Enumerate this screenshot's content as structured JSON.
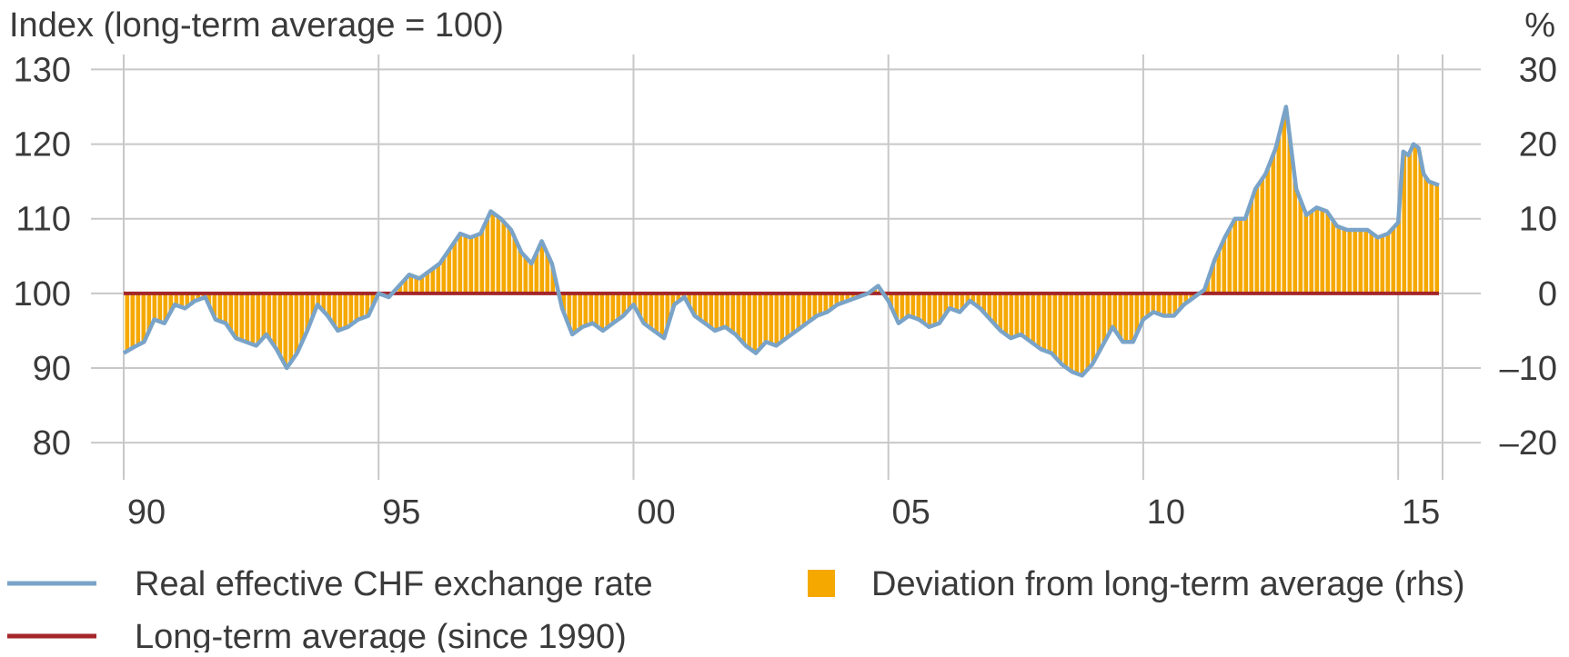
{
  "chart_data": {
    "type": "line",
    "title": "",
    "ylabel_left": "Index (long-term average = 100)",
    "ylabel_right": "%",
    "x_range": [
      1990.0,
      2015.8
    ],
    "ylim_left": [
      76,
      132
    ],
    "ylim_right": [
      -24,
      32
    ],
    "yticks_left": [
      80,
      90,
      100,
      110,
      120,
      130
    ],
    "yticks_right": [
      -20,
      -10,
      0,
      10,
      20,
      30
    ],
    "ytick_labels_right": [
      "–20",
      "–10",
      "0",
      "10",
      "20",
      "30"
    ],
    "xticks": [
      {
        "year": 1990,
        "label": "90"
      },
      {
        "year": 1995,
        "label": "95"
      },
      {
        "year": 2000,
        "label": "00"
      },
      {
        "year": 2005,
        "label": "05"
      },
      {
        "year": 2010,
        "label": "10"
      },
      {
        "year": 2015,
        "label": "15"
      }
    ],
    "grid": true,
    "legend": [
      {
        "name": "Real effective CHF exchange rate",
        "symbol": "line",
        "color": "#7aa3c8"
      },
      {
        "name": "Deviation from long-term average (rhs)",
        "symbol": "square",
        "color": "#f5a800"
      },
      {
        "name": "Long-term average (since 1990)",
        "symbol": "line",
        "color": "#a3262a"
      }
    ],
    "colors": {
      "rate_line": "#7aa3c8",
      "average_line": "#a3262a",
      "deviation_fill": "#f5a800",
      "deviation_stripe": "#ffffff",
      "grid": "#c8c8c8"
    },
    "series": [
      {
        "name": "Real effective CHF exchange rate",
        "points": [
          [
            1990.0,
            92.0
          ],
          [
            1990.2,
            92.8
          ],
          [
            1990.4,
            93.5
          ],
          [
            1990.6,
            96.5
          ],
          [
            1990.8,
            96.0
          ],
          [
            1991.0,
            98.5
          ],
          [
            1991.2,
            98.0
          ],
          [
            1991.4,
            99.0
          ],
          [
            1991.6,
            99.5
          ],
          [
            1991.8,
            96.5
          ],
          [
            1992.0,
            96.0
          ],
          [
            1992.2,
            94.0
          ],
          [
            1992.4,
            93.5
          ],
          [
            1992.6,
            93.0
          ],
          [
            1992.8,
            94.5
          ],
          [
            1993.0,
            92.5
          ],
          [
            1993.2,
            90.0
          ],
          [
            1993.4,
            92.0
          ],
          [
            1993.6,
            95.0
          ],
          [
            1993.8,
            98.5
          ],
          [
            1994.0,
            97.0
          ],
          [
            1994.2,
            95.0
          ],
          [
            1994.4,
            95.5
          ],
          [
            1994.6,
            96.5
          ],
          [
            1994.8,
            97.0
          ],
          [
            1995.0,
            100.0
          ],
          [
            1995.2,
            99.5
          ],
          [
            1995.4,
            101.0
          ],
          [
            1995.6,
            102.5
          ],
          [
            1995.8,
            102.0
          ],
          [
            1996.0,
            103.0
          ],
          [
            1996.2,
            104.0
          ],
          [
            1996.4,
            106.0
          ],
          [
            1996.6,
            108.0
          ],
          [
            1996.8,
            107.5
          ],
          [
            1997.0,
            108.0
          ],
          [
            1997.2,
            111.0
          ],
          [
            1997.4,
            110.0
          ],
          [
            1997.6,
            108.5
          ],
          [
            1997.8,
            105.5
          ],
          [
            1998.0,
            104.0
          ],
          [
            1998.2,
            107.0
          ],
          [
            1998.4,
            104.0
          ],
          [
            1998.6,
            98.0
          ],
          [
            1998.8,
            94.5
          ],
          [
            1999.0,
            95.5
          ],
          [
            1999.2,
            96.0
          ],
          [
            1999.4,
            95.0
          ],
          [
            1999.6,
            96.0
          ],
          [
            1999.8,
            97.0
          ],
          [
            2000.0,
            98.5
          ],
          [
            2000.2,
            96.0
          ],
          [
            2000.4,
            95.0
          ],
          [
            2000.6,
            94.0
          ],
          [
            2000.8,
            98.5
          ],
          [
            2001.0,
            99.5
          ],
          [
            2001.2,
            97.0
          ],
          [
            2001.4,
            96.0
          ],
          [
            2001.6,
            95.0
          ],
          [
            2001.8,
            95.5
          ],
          [
            2002.0,
            94.5
          ],
          [
            2002.2,
            93.0
          ],
          [
            2002.4,
            92.0
          ],
          [
            2002.6,
            93.5
          ],
          [
            2002.8,
            93.0
          ],
          [
            2003.0,
            94.0
          ],
          [
            2003.2,
            95.0
          ],
          [
            2003.4,
            96.0
          ],
          [
            2003.6,
            97.0
          ],
          [
            2003.8,
            97.5
          ],
          [
            2004.0,
            98.5
          ],
          [
            2004.2,
            99.0
          ],
          [
            2004.4,
            99.5
          ],
          [
            2004.6,
            100.0
          ],
          [
            2004.8,
            101.0
          ],
          [
            2005.0,
            99.0
          ],
          [
            2005.2,
            96.0
          ],
          [
            2005.4,
            97.0
          ],
          [
            2005.6,
            96.5
          ],
          [
            2005.8,
            95.5
          ],
          [
            2006.0,
            96.0
          ],
          [
            2006.2,
            98.0
          ],
          [
            2006.4,
            97.5
          ],
          [
            2006.6,
            99.0
          ],
          [
            2006.8,
            98.0
          ],
          [
            2007.0,
            96.5
          ],
          [
            2007.2,
            95.0
          ],
          [
            2007.4,
            94.0
          ],
          [
            2007.6,
            94.5
          ],
          [
            2007.8,
            93.5
          ],
          [
            2008.0,
            92.5
          ],
          [
            2008.2,
            92.0
          ],
          [
            2008.4,
            90.5
          ],
          [
            2008.6,
            89.5
          ],
          [
            2008.8,
            89.0
          ],
          [
            2009.0,
            90.5
          ],
          [
            2009.2,
            93.0
          ],
          [
            2009.4,
            95.5
          ],
          [
            2009.6,
            93.5
          ],
          [
            2009.8,
            93.5
          ],
          [
            2010.0,
            96.5
          ],
          [
            2010.2,
            97.5
          ],
          [
            2010.4,
            97.0
          ],
          [
            2010.6,
            97.0
          ],
          [
            2010.8,
            98.5
          ],
          [
            2011.0,
            99.5
          ],
          [
            2011.2,
            100.5
          ],
          [
            2011.4,
            104.5
          ],
          [
            2011.6,
            107.5
          ],
          [
            2011.8,
            110.0
          ],
          [
            2012.0,
            110.0
          ],
          [
            2012.2,
            114.0
          ],
          [
            2012.4,
            116.0
          ],
          [
            2012.6,
            119.5
          ],
          [
            2012.8,
            125.0
          ],
          [
            2013.0,
            114.0
          ],
          [
            2013.2,
            110.5
          ],
          [
            2013.4,
            111.5
          ],
          [
            2013.6,
            111.0
          ],
          [
            2013.8,
            109.0
          ],
          [
            2014.0,
            108.5
          ],
          [
            2014.2,
            108.5
          ],
          [
            2014.4,
            108.5
          ],
          [
            2014.6,
            107.5
          ],
          [
            2014.8,
            108.0
          ],
          [
            2015.0,
            109.5
          ],
          [
            2015.1,
            119.0
          ],
          [
            2015.2,
            118.5
          ],
          [
            2015.3,
            120.0
          ],
          [
            2015.4,
            119.5
          ],
          [
            2015.5,
            116.0
          ],
          [
            2015.6,
            115.0
          ],
          [
            2015.8,
            114.5
          ]
        ]
      },
      {
        "name": "Long-term average (since 1990)",
        "points": [
          [
            1990.0,
            100
          ],
          [
            2015.8,
            100
          ]
        ]
      }
    ]
  }
}
